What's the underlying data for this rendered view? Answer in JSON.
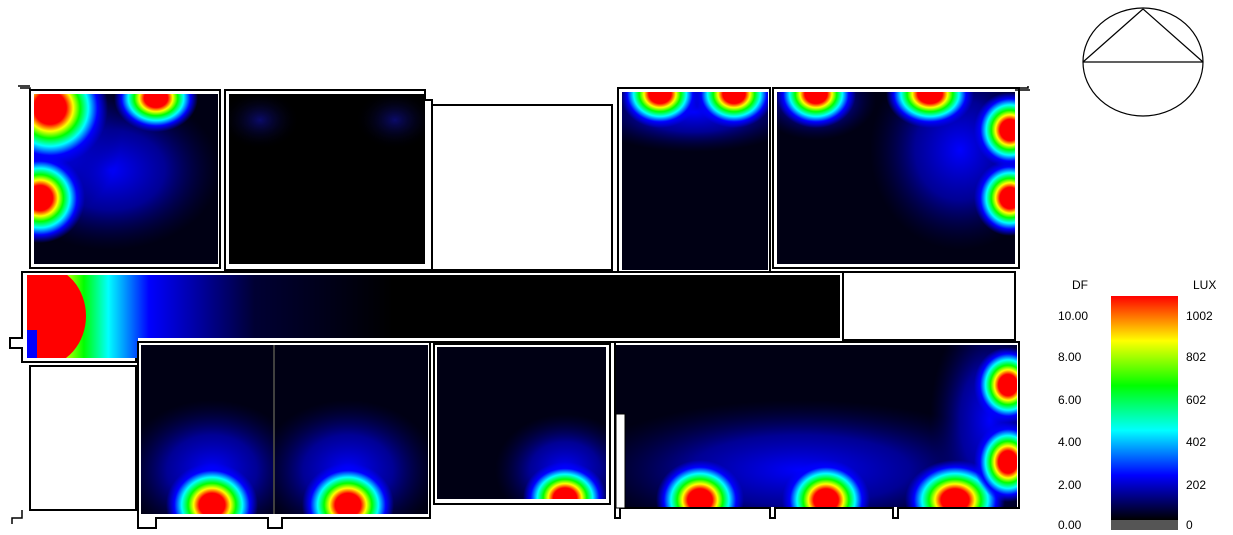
{
  "legend": {
    "df_header": "DF",
    "lux_header": "LUX",
    "df_labels": [
      "10.00",
      "8.00",
      "6.00",
      "4.00",
      "2.00",
      "0.00"
    ],
    "lux_labels": [
      "1002",
      "802",
      "602",
      "402",
      "202",
      "0"
    ],
    "gradient_colors": [
      "#ff0000",
      "#ffff00",
      "#00ff00",
      "#00ffff",
      "#0000ff",
      "#000000"
    ],
    "zero_color": "#555555"
  },
  "colors": {
    "wall": "#000000",
    "room_fill": "#ffffff"
  }
}
